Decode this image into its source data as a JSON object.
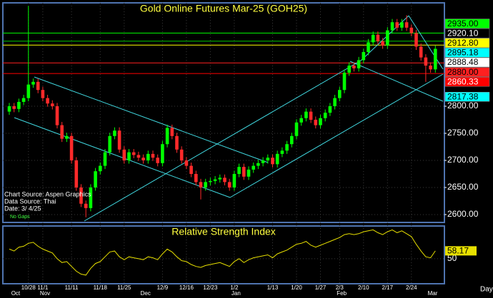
{
  "chart_data": {
    "type": "candlestick",
    "title": "Gold Online Futures Mar-25 (GOH25)",
    "categories": [
      null,
      null,
      null,
      null,
      "10/28",
      null,
      null,
      "11/1",
      null,
      null,
      null,
      null,
      null,
      "11/11",
      null,
      null,
      null,
      null,
      null,
      "11/18",
      null,
      null,
      null,
      null,
      "11/25",
      null,
      null,
      null,
      null,
      null,
      null,
      null,
      "12/9",
      null,
      null,
      null,
      null,
      "12/16",
      null,
      null,
      null,
      null,
      "12/23",
      null,
      null,
      null,
      null,
      "1/2",
      null,
      null,
      null,
      null,
      null,
      null,
      null,
      "1/13",
      null,
      null,
      null,
      null,
      "1/20",
      null,
      null,
      null,
      null,
      "1/27",
      null,
      null,
      null,
      "2/3",
      null,
      null,
      null,
      null,
      "2/10",
      null,
      null,
      null,
      null,
      "2/17",
      null,
      null,
      null,
      null,
      "2/24",
      null,
      null,
      null,
      null,
      null
    ],
    "months": [
      null,
      "Oct",
      null,
      null,
      null,
      null,
      null,
      "Nov",
      null,
      null,
      null,
      null,
      null,
      null,
      null,
      null,
      null,
      null,
      null,
      null,
      null,
      null,
      null,
      null,
      null,
      null,
      null,
      null,
      "Dec",
      null,
      null,
      null,
      null,
      null,
      null,
      null,
      null,
      null,
      null,
      null,
      null,
      null,
      null,
      null,
      null,
      null,
      null,
      "Jan",
      null,
      null,
      null,
      null,
      null,
      null,
      null,
      null,
      null,
      null,
      null,
      null,
      null,
      null,
      null,
      null,
      null,
      null,
      null,
      null,
      null,
      "Feb",
      null,
      null,
      null,
      null,
      null,
      null,
      null,
      null,
      null,
      null,
      null,
      null,
      null,
      null,
      null,
      null,
      null,
      null,
      "Mar",
      null
    ],
    "open": [
      2790,
      2800,
      2795,
      2808,
      2815,
      2840,
      2845,
      2830,
      2815,
      2805,
      2800,
      2765,
      2740,
      2745,
      2700,
      2650,
      2620,
      2612,
      2650,
      2680,
      2690,
      2715,
      2745,
      2755,
      2720,
      2700,
      2715,
      2710,
      2705,
      2700,
      2712,
      2705,
      2695,
      2730,
      2760,
      2745,
      2720,
      2700,
      2690,
      2675,
      2660,
      2650,
      2660,
      2662,
      2665,
      2668,
      2660,
      2650,
      2675,
      2688,
      2670,
      2683,
      2690,
      2695,
      2700,
      2705,
      2693,
      2712,
      2718,
      2730,
      2745,
      2770,
      2778,
      2790,
      2775,
      2765,
      2778,
      2788,
      2800,
      2815,
      2830,
      2862,
      2875,
      2870,
      2885,
      2900,
      2918,
      2932,
      2920,
      2912,
      2940,
      2955,
      2945,
      2955,
      2945,
      2935,
      2910,
      2890,
      2875,
      2868
    ],
    "high": [
      2806,
      2806,
      2814,
      2821,
      2985,
      2851,
      2851,
      2836,
      2821,
      2811,
      2806,
      2771,
      2751,
      2751,
      2706,
      2656,
      2626,
      2656,
      2686,
      2696,
      2721,
      2751,
      2761,
      2761,
      2726,
      2721,
      2721,
      2716,
      2711,
      2718,
      2718,
      2711,
      2736,
      2766,
      2766,
      2751,
      2726,
      2706,
      2696,
      2681,
      2666,
      2666,
      2668,
      2671,
      2674,
      2674,
      2666,
      2681,
      2694,
      2694,
      2689,
      2696,
      2701,
      2706,
      2711,
      2711,
      2718,
      2724,
      2736,
      2751,
      2776,
      2784,
      2796,
      2796,
      2781,
      2784,
      2794,
      2806,
      2821,
      2836,
      2868,
      2881,
      2881,
      2891,
      2906,
      2924,
      2938,
      2938,
      2926,
      2946,
      2961,
      2961,
      2961,
      2968,
      2951,
      2941,
      2916,
      2896,
      2881,
      2912
    ],
    "low": [
      2784,
      2789,
      2789,
      2802,
      2809,
      2834,
      2824,
      2809,
      2799,
      2794,
      2759,
      2734,
      2734,
      2694,
      2644,
      2614,
      2595,
      2606,
      2644,
      2674,
      2684,
      2709,
      2739,
      2714,
      2694,
      2694,
      2704,
      2699,
      2694,
      2694,
      2699,
      2689,
      2689,
      2724,
      2739,
      2714,
      2694,
      2684,
      2669,
      2654,
      2628,
      2644,
      2654,
      2656,
      2659,
      2654,
      2644,
      2644,
      2669,
      2664,
      2664,
      2677,
      2684,
      2689,
      2694,
      2687,
      2687,
      2706,
      2712,
      2724,
      2739,
      2764,
      2772,
      2769,
      2759,
      2759,
      2772,
      2782,
      2794,
      2809,
      2824,
      2856,
      2864,
      2864,
      2879,
      2894,
      2912,
      2914,
      2906,
      2906,
      2934,
      2939,
      2939,
      2939,
      2929,
      2904,
      2884,
      2845,
      2862,
      2862
    ],
    "close": [
      2800,
      2795,
      2808,
      2815,
      2840,
      2845,
      2830,
      2815,
      2805,
      2800,
      2765,
      2740,
      2745,
      2700,
      2650,
      2620,
      2612,
      2650,
      2680,
      2690,
      2715,
      2745,
      2755,
      2720,
      2700,
      2715,
      2710,
      2705,
      2700,
      2712,
      2705,
      2695,
      2730,
      2760,
      2745,
      2720,
      2700,
      2690,
      2675,
      2660,
      2650,
      2660,
      2662,
      2665,
      2668,
      2660,
      2650,
      2675,
      2688,
      2670,
      2683,
      2690,
      2695,
      2700,
      2705,
      2693,
      2712,
      2718,
      2730,
      2745,
      2770,
      2778,
      2790,
      2775,
      2765,
      2778,
      2788,
      2800,
      2815,
      2830,
      2862,
      2875,
      2870,
      2885,
      2900,
      2918,
      2932,
      2920,
      2912,
      2940,
      2955,
      2945,
      2955,
      2945,
      2935,
      2910,
      2890,
      2875,
      2868,
      2906
    ],
    "up_color": "#00ff00",
    "down_color": "#ff2a2a",
    "ylim": [
      2585.5,
      2990.8
    ],
    "yticks": [
      {
        "value": 2800,
        "label": "2800.00"
      },
      {
        "value": 2750,
        "label": "2750.00"
      },
      {
        "value": 2700,
        "label": "2700.00"
      },
      {
        "value": 2650,
        "label": "2650.00"
      },
      {
        "value": 2600,
        "label": "2600.00"
      }
    ],
    "grid": true,
    "price_labels": [
      {
        "value": 2935,
        "label": "2935.00",
        "color": "#00ff00",
        "text_color": "#000000",
        "line": true
      },
      {
        "value": 2920.1,
        "label": "2920.10",
        "color": "#000000",
        "text_color": "#ffffff",
        "line": true
      },
      {
        "value": 2912.8,
        "label": "2912.80",
        "color": "#ffff00",
        "text_color": "#000000",
        "line": true
      },
      {
        "value": 2895.18,
        "label": "2895.18",
        "color": "#00ffff",
        "text_color": "#000000",
        "line": false
      },
      {
        "value": 2888.48,
        "label": "2888.48",
        "color": "#ffffff",
        "text_color": "#000000",
        "line": false
      },
      {
        "value": 2880,
        "label": "2880.00",
        "color": "#ff2020",
        "text_color": "#000000",
        "line": true
      },
      {
        "value": 2860.33,
        "label": "2860.33",
        "color": "#ff0000",
        "text_color": "#ffffff",
        "line": true
      },
      {
        "value": 2817.38,
        "label": "2817.38",
        "color": "#00ffff",
        "text_color": "#000000",
        "line": false
      }
    ],
    "annotations": [
      "Chart Source: Aspen Graphics",
      "Data Source: Thai",
      "Date:  3/ 4/25",
      "No Gaps"
    ],
    "x_label": "Day",
    "rsi": {
      "title": "Relative Strength Index",
      "color": "#e8e000",
      "ylim": [
        24,
        84
      ],
      "yticks": [
        50
      ],
      "values": [
        60,
        58,
        62,
        63,
        66,
        67,
        63,
        60,
        58,
        56,
        50,
        46,
        47,
        42,
        37,
        34,
        33,
        40,
        45,
        47,
        52,
        57,
        58,
        52,
        49,
        52,
        51,
        50,
        49,
        52,
        51,
        49,
        55,
        60,
        57,
        52,
        48,
        47,
        44,
        42,
        41,
        43,
        44,
        45,
        46,
        44,
        42,
        47,
        50,
        46,
        49,
        51,
        52,
        53,
        54,
        51,
        55,
        57,
        59,
        62,
        65,
        66,
        68,
        64,
        62,
        64,
        66,
        68,
        70,
        72,
        75,
        76,
        75,
        76,
        78,
        79,
        80,
        77,
        75,
        78,
        80,
        77,
        79,
        76,
        73,
        65,
        58,
        52,
        51,
        58.17
      ]
    }
  }
}
